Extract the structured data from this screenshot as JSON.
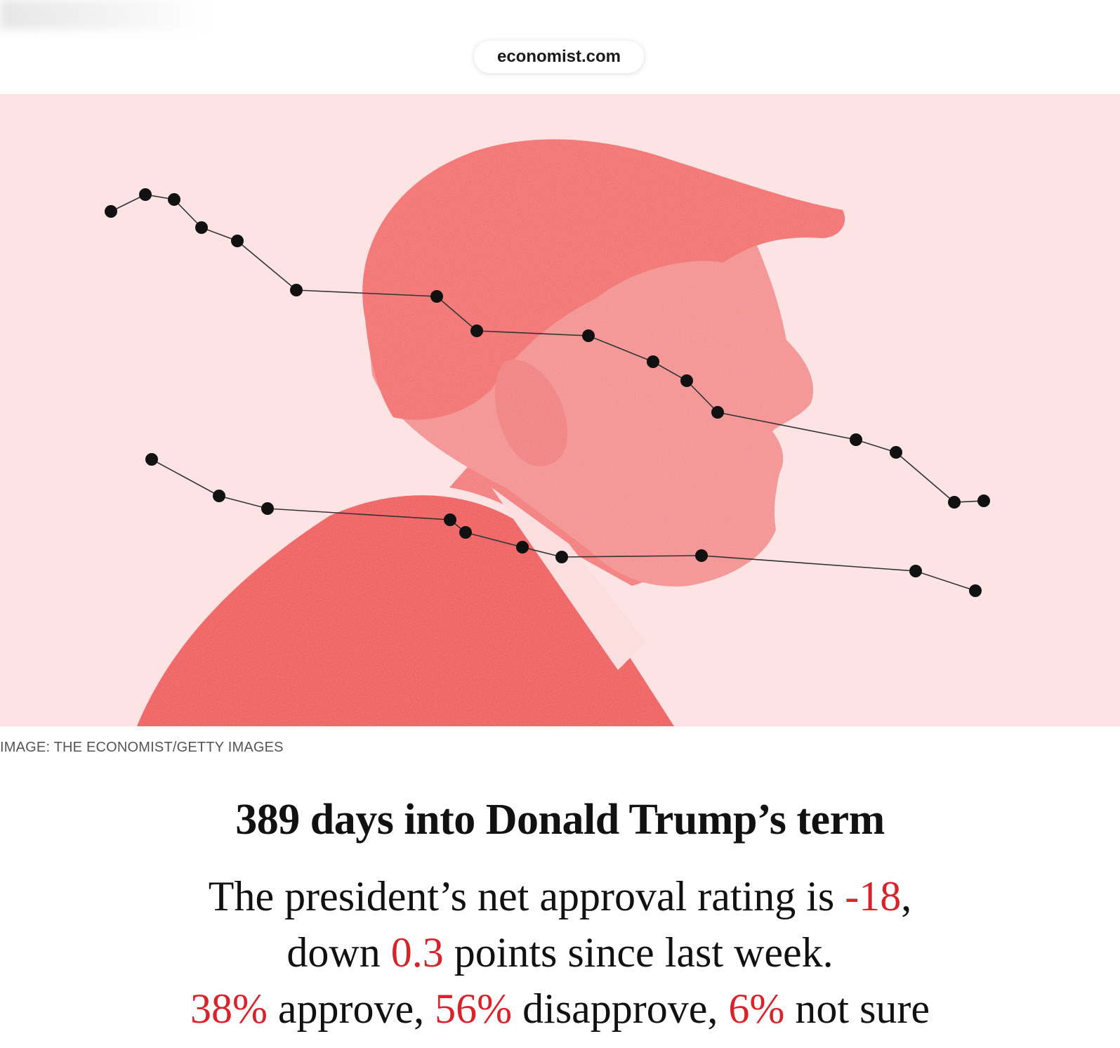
{
  "browser": {
    "url": "economist.com"
  },
  "hero": {
    "caption": "IMAGE: THE ECONOMIST/GETTY IMAGES",
    "background_color": "#fde3e4",
    "figure_color": "#f04848",
    "dot_color": "#111111"
  },
  "article": {
    "headline": "389 days into Donald Trump’s term",
    "line1_prefix": "The president’s net approval rating is ",
    "net_approval": "-18",
    "line1_suffix": ",",
    "line2_prefix": "down ",
    "change": "0.3",
    "line2_suffix": " points since last week.",
    "approve": "38%",
    "approve_label": " approve, ",
    "disapprove": "56%",
    "disapprove_label": " disapprove, ",
    "not_sure": "6%",
    "not_sure_label": " not sure",
    "highlight_color": "#d8232a"
  }
}
